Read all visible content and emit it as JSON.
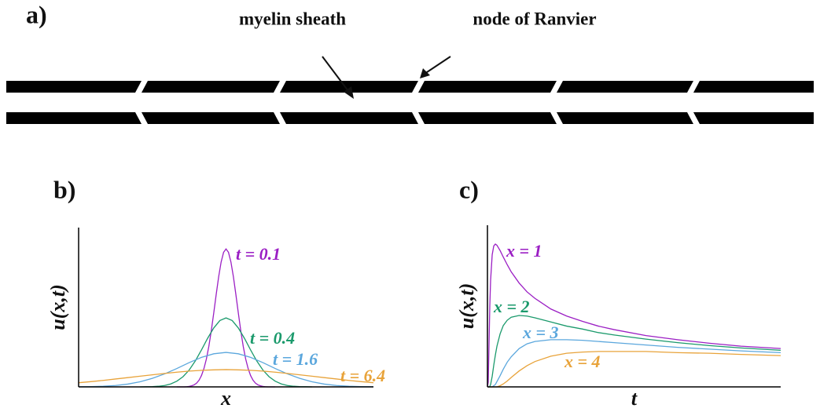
{
  "panel_a": {
    "label": "a)",
    "annotations": [
      "myelin sheath",
      "node of Ranvier"
    ]
  },
  "chart_data": [
    {
      "type": "line",
      "label": "b)",
      "xlabel": "x",
      "ylabel": "u(x,t)",
      "xlim": [
        -6,
        6
      ],
      "ylim": [
        0,
        1.03
      ],
      "series": [
        {
          "name": "t = 0.1",
          "color": "#9b1fc4",
          "x": [
            -2,
            -1.9,
            -1.8,
            -1.7,
            -1.6,
            -1.5,
            -1.4,
            -1.3,
            -1.2,
            -1.1,
            -1,
            -0.9,
            -0.8,
            -0.7,
            -0.6,
            -0.5,
            -0.4,
            -0.3,
            -0.2,
            -0.1,
            0,
            0.1,
            0.2,
            0.3,
            0.4,
            0.5,
            0.6,
            0.7,
            0.8,
            0.9,
            1,
            1.1,
            1.2,
            1.3,
            1.4,
            1.5,
            1.6,
            1.7,
            1.8,
            1.9,
            2
          ],
          "values": [
            0,
            0,
            0,
            0,
            0.001,
            0.003,
            0.007,
            0.013,
            0.024,
            0.043,
            0.073,
            0.118,
            0.18,
            0.262,
            0.363,
            0.478,
            0.598,
            0.712,
            0.807,
            0.87,
            0.892,
            0.87,
            0.807,
            0.712,
            0.598,
            0.478,
            0.363,
            0.262,
            0.18,
            0.118,
            0.073,
            0.043,
            0.024,
            0.013,
            0.007,
            0.003,
            0.001,
            0,
            0,
            0,
            0
          ]
        },
        {
          "name": "t = 0.4",
          "color": "#1b9a6c",
          "x": [
            -3.5,
            -3.25,
            -3,
            -2.75,
            -2.5,
            -2.25,
            -2,
            -1.75,
            -1.5,
            -1.25,
            -1,
            -0.75,
            -0.5,
            -0.25,
            0,
            0.25,
            0.5,
            0.75,
            1,
            1.25,
            1.5,
            1.75,
            2,
            2.25,
            2.5,
            2.75,
            3,
            3.25,
            3.5
          ],
          "values": [
            0,
            0.001,
            0.002,
            0.004,
            0.009,
            0.019,
            0.037,
            0.066,
            0.109,
            0.168,
            0.239,
            0.314,
            0.381,
            0.429,
            0.446,
            0.429,
            0.381,
            0.314,
            0.239,
            0.168,
            0.109,
            0.066,
            0.037,
            0.019,
            0.009,
            0.004,
            0.002,
            0.001,
            0
          ]
        },
        {
          "name": "t = 1.6",
          "color": "#5ba7dd",
          "x": [
            -6,
            -5.5,
            -5,
            -4.5,
            -4,
            -3.5,
            -3,
            -2.5,
            -2,
            -1.5,
            -1,
            -0.5,
            0,
            0.5,
            1,
            1.5,
            2,
            2.5,
            3,
            3.5,
            4,
            4.5,
            5,
            5.5,
            6
          ],
          "values": [
            0.001,
            0.002,
            0.004,
            0.009,
            0.018,
            0.033,
            0.055,
            0.084,
            0.119,
            0.157,
            0.191,
            0.214,
            0.223,
            0.214,
            0.191,
            0.157,
            0.119,
            0.084,
            0.055,
            0.033,
            0.018,
            0.009,
            0.004,
            0.002,
            0.001
          ]
        },
        {
          "name": "t = 6.4",
          "color": "#e8a33a",
          "x": [
            -6,
            -5.5,
            -5,
            -4.5,
            -4,
            -3.5,
            -3,
            -2.5,
            -2,
            -1.5,
            -1,
            -0.5,
            0,
            0.5,
            1,
            1.5,
            2,
            2.5,
            3,
            3.5,
            4,
            4.5,
            5,
            5.5,
            6
          ],
          "values": [
            0.027,
            0.034,
            0.042,
            0.051,
            0.06,
            0.069,
            0.078,
            0.087,
            0.095,
            0.102,
            0.107,
            0.11,
            0.112,
            0.11,
            0.107,
            0.102,
            0.095,
            0.087,
            0.078,
            0.069,
            0.06,
            0.051,
            0.042,
            0.034,
            0.027
          ]
        }
      ]
    },
    {
      "type": "line",
      "label": "c)",
      "xlabel": "t",
      "ylabel": "u(x,t)",
      "xlim": [
        0,
        18.5
      ],
      "ylim": [
        0,
        0.274
      ],
      "series": [
        {
          "name": "x = 1",
          "color": "#9b1fc4",
          "x": [
            0,
            0.05,
            0.1,
            0.15,
            0.2,
            0.3,
            0.4,
            0.5,
            0.6,
            0.8,
            1,
            1.25,
            1.5,
            2,
            2.5,
            3,
            4,
            5,
            6,
            7,
            8,
            10,
            12,
            14,
            16,
            18.5
          ],
          "values": [
            0,
            0.008,
            0.073,
            0.138,
            0.181,
            0.224,
            0.239,
            0.242,
            0.24,
            0.231,
            0.22,
            0.207,
            0.195,
            0.176,
            0.161,
            0.15,
            0.132,
            0.12,
            0.111,
            0.103,
            0.097,
            0.087,
            0.08,
            0.074,
            0.069,
            0.065
          ]
        },
        {
          "name": "x = 2",
          "color": "#1b9a6c",
          "x": [
            0,
            0.05,
            0.1,
            0.15,
            0.2,
            0.3,
            0.4,
            0.5,
            0.6,
            0.8,
            1,
            1.25,
            1.5,
            2,
            2.5,
            3,
            4,
            5,
            6,
            7,
            8,
            10,
            12,
            14,
            16,
            18.5
          ],
          "values": [
            0,
            0,
            0,
            0.001,
            0.004,
            0.018,
            0.037,
            0.054,
            0.069,
            0.09,
            0.104,
            0.113,
            0.118,
            0.121,
            0.12,
            0.117,
            0.11,
            0.103,
            0.098,
            0.092,
            0.088,
            0.081,
            0.075,
            0.07,
            0.066,
            0.062
          ]
        },
        {
          "name": "x = 3",
          "color": "#5ba7dd",
          "x": [
            0,
            0.05,
            0.1,
            0.15,
            0.2,
            0.3,
            0.4,
            0.5,
            0.6,
            0.8,
            1,
            1.25,
            1.5,
            2,
            2.5,
            3,
            4,
            5,
            6,
            7,
            8,
            10,
            12,
            14,
            16,
            18.5
          ],
          "values": [
            0,
            0,
            0,
            0,
            0,
            0,
            0.002,
            0.004,
            0.009,
            0.019,
            0.03,
            0.042,
            0.051,
            0.065,
            0.073,
            0.077,
            0.08,
            0.08,
            0.079,
            0.077,
            0.075,
            0.071,
            0.067,
            0.064,
            0.061,
            0.058
          ]
        },
        {
          "name": "x = 4",
          "color": "#e8a33a",
          "x": [
            0,
            0.05,
            0.1,
            0.15,
            0.2,
            0.3,
            0.4,
            0.5,
            0.6,
            0.8,
            1,
            1.25,
            1.5,
            2,
            2.5,
            3,
            4,
            5,
            6,
            7,
            8,
            10,
            12,
            14,
            16,
            18.5
          ],
          "values": [
            0,
            0,
            0,
            0,
            0,
            0,
            0,
            0,
            0,
            0.002,
            0.005,
            0.01,
            0.016,
            0.027,
            0.036,
            0.043,
            0.052,
            0.057,
            0.059,
            0.06,
            0.06,
            0.06,
            0.058,
            0.057,
            0.055,
            0.053
          ]
        }
      ]
    }
  ]
}
